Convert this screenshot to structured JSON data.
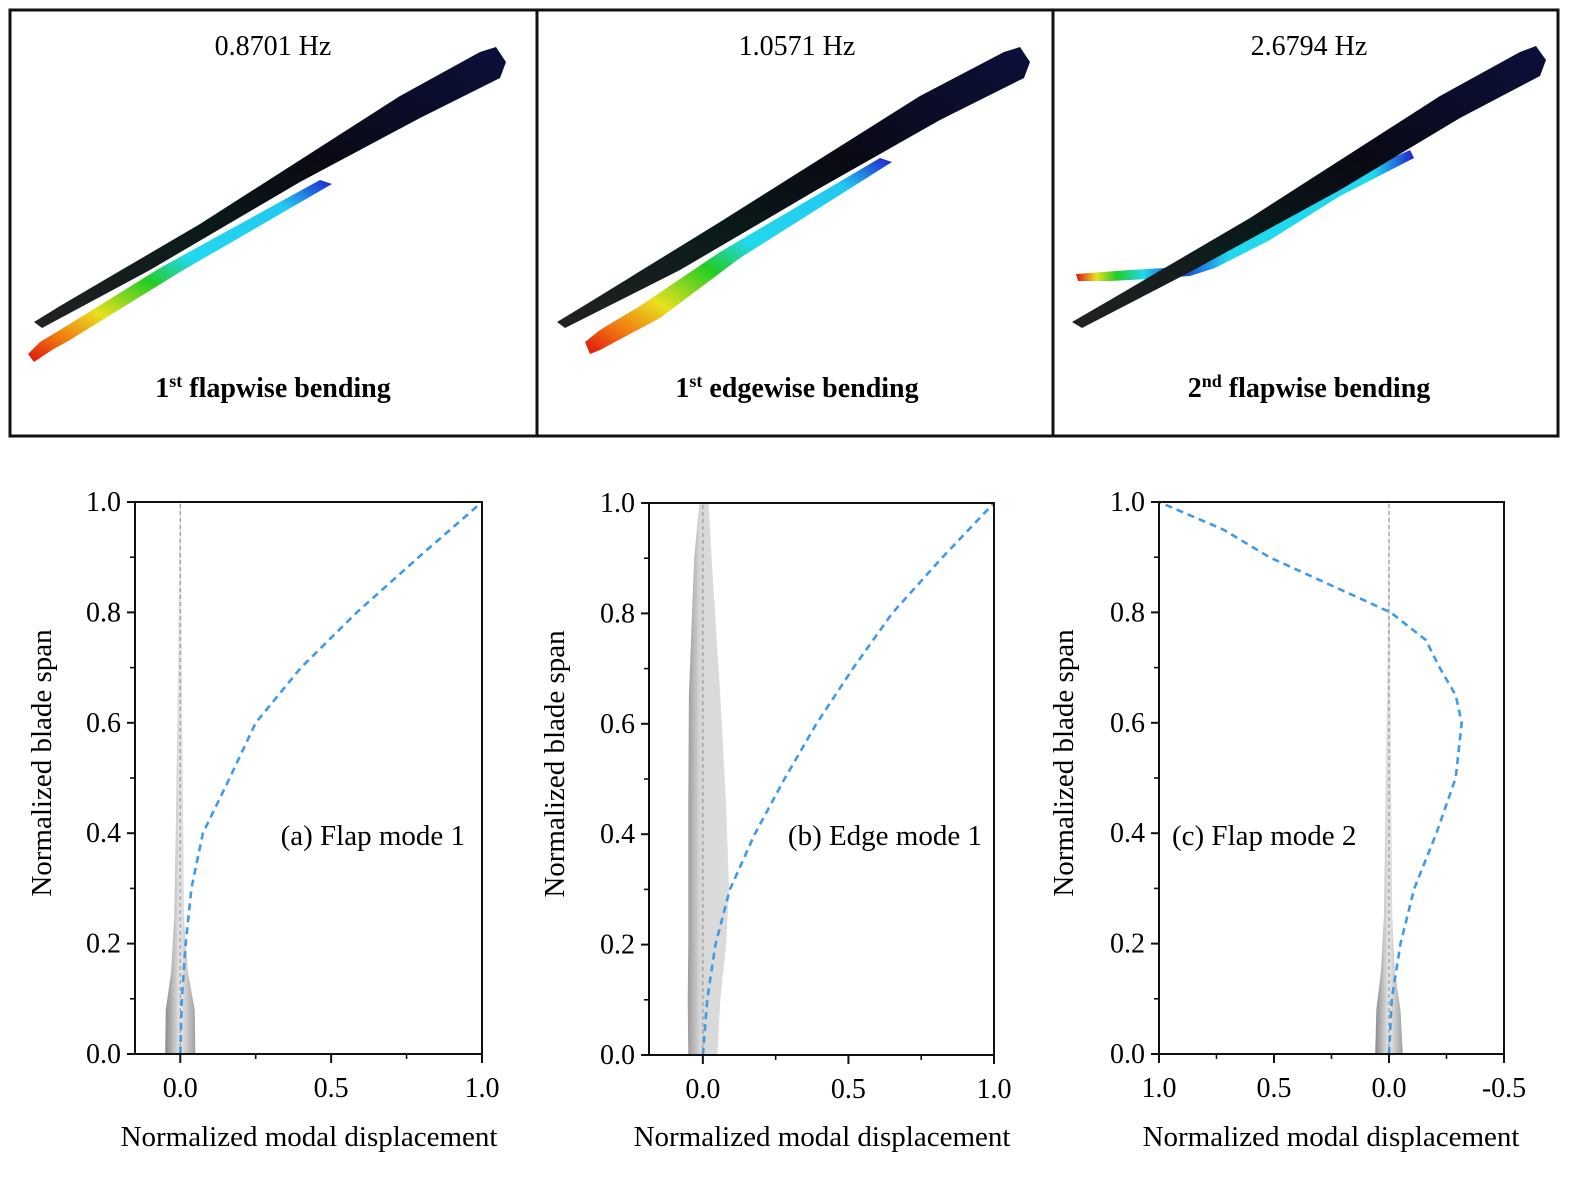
{
  "panels": [
    {
      "frequency": "0.8701 Hz",
      "ordinal": "1",
      "ordinal_suffix": "st",
      "mode_text": " flapwise bending"
    },
    {
      "frequency": "1.0571 Hz",
      "ordinal": "1",
      "ordinal_suffix": "st",
      "mode_text": " edgewise bending"
    },
    {
      "frequency": "2.6794 Hz",
      "ordinal": "2",
      "ordinal_suffix": "nd",
      "mode_text": " flapwise bending"
    }
  ],
  "colors": {
    "mode_curve": "#3d9be9",
    "frame": "#111111",
    "contour_max": "#e0120f",
    "contour_mid": "#22cc22",
    "contour_low": "#22d8ee",
    "contour_min": "#1a1a6e"
  },
  "chart_data": [
    {
      "type": "line",
      "annotation": "(a) Flap mode 1",
      "xlabel": "Normalized modal displacement",
      "ylabel": "Normalized blade span",
      "xlim": [
        -0.15,
        1.0
      ],
      "ylim": [
        0.0,
        1.0
      ],
      "xticks": [
        0.0,
        0.5,
        1.0
      ],
      "xtick_labels": [
        "0.0",
        "0.5",
        "1.0"
      ],
      "yticks": [
        0.0,
        0.2,
        0.4,
        0.6,
        0.8,
        1.0
      ],
      "ytick_labels": [
        "0.0",
        "0.2",
        "0.4",
        "0.6",
        "0.8",
        "1.0"
      ],
      "grid": false,
      "series": [
        {
          "style": "dashed",
          "x": [
            0,
            0.005,
            0.018,
            0.037,
            0.075,
            0.164,
            0.25,
            0.4,
            0.585,
            0.79,
            1.0
          ],
          "y": [
            0,
            0.1,
            0.2,
            0.3,
            0.4,
            0.5,
            0.6,
            0.7,
            0.8,
            0.9,
            1.0
          ]
        }
      ]
    },
    {
      "type": "line",
      "annotation": "(b) Edge mode 1",
      "xlabel": "Normalized modal displacement",
      "ylabel": "Normalized blade span",
      "xlim": [
        -0.185,
        1.0
      ],
      "ylim": [
        0.0,
        1.0
      ],
      "xticks": [
        0.0,
        0.5,
        1.0
      ],
      "xtick_labels": [
        "0.0",
        "0.5",
        "1.0"
      ],
      "yticks": [
        0.0,
        0.2,
        0.4,
        0.6,
        0.8,
        1.0
      ],
      "ytick_labels": [
        "0.0",
        "0.2",
        "0.4",
        "0.6",
        "0.8",
        "1.0"
      ],
      "grid": false,
      "series": [
        {
          "style": "dashed",
          "x": [
            0,
            0.015,
            0.043,
            0.093,
            0.178,
            0.28,
            0.39,
            0.515,
            0.65,
            0.82,
            1.0
          ],
          "y": [
            0,
            0.1,
            0.2,
            0.3,
            0.4,
            0.5,
            0.6,
            0.7,
            0.8,
            0.9,
            1.0
          ]
        }
      ]
    },
    {
      "type": "line",
      "annotation": "(c) Flap mode 2",
      "xlabel": "Normalized modal displacement",
      "ylabel": "Normalized blade span",
      "xlim": [
        1.0,
        -0.5
      ],
      "ylim": [
        0.0,
        1.0
      ],
      "xticks": [
        1.0,
        0.5,
        0.0,
        -0.5
      ],
      "xtick_labels": [
        "1.0",
        "0.5",
        "0.0",
        "-0.5"
      ],
      "yticks": [
        0.0,
        0.2,
        0.4,
        0.6,
        0.8,
        1.0
      ],
      "ytick_labels": [
        "0.0",
        "0.2",
        "0.4",
        "0.6",
        "0.8",
        "1.0"
      ],
      "grid": false,
      "series": [
        {
          "style": "dashed",
          "x": [
            0,
            -0.012,
            -0.05,
            -0.11,
            -0.206,
            -0.29,
            -0.316,
            -0.29,
            -0.22,
            -0.16,
            -0.007,
            0.52,
            0.72,
            1.0
          ],
          "y": [
            0,
            0.1,
            0.2,
            0.3,
            0.4,
            0.5,
            0.6,
            0.65,
            0.7,
            0.75,
            0.8,
            0.9,
            0.95,
            1.0
          ]
        }
      ]
    }
  ]
}
